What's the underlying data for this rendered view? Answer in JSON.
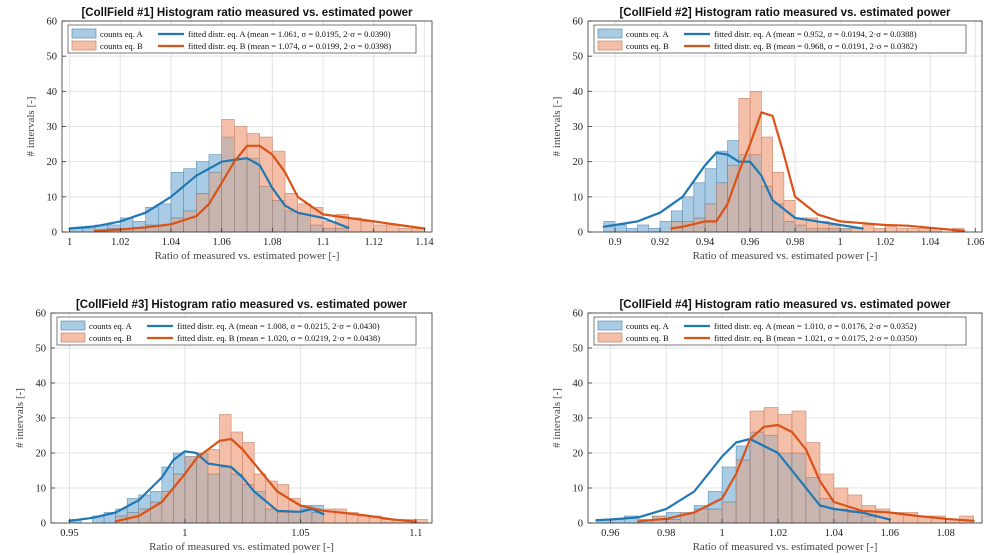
{
  "colors": {
    "a_fill": "#a9cbe3",
    "a_edge": "#5b8fb5",
    "a_line": "#1f77b4",
    "b_fill": "#f4bfa8",
    "b_edge": "#c98466",
    "b_line": "#d95319",
    "grid": "#e3e3e3",
    "overlap": "#c8b5b0"
  },
  "chart_data": [
    {
      "type": "bar",
      "title": "[CollField #1] Histogram ratio measured vs. estimated power",
      "xlabel": "Ratio of measured vs. estimated power [-]",
      "ylabel": "# intervals [-]",
      "xlim": [
        0.997,
        1.143
      ],
      "ylim": [
        0,
        60
      ],
      "xticks": [
        1,
        1.02,
        1.04,
        1.06,
        1.08,
        1.1,
        1.12,
        1.14
      ],
      "xtick_labels": [
        "1",
        "1.02",
        "1.04",
        "1.06",
        "1.08",
        "1.1",
        "1.12",
        "1.14"
      ],
      "yticks": [
        0,
        10,
        20,
        30,
        40,
        50,
        60
      ],
      "grid": true,
      "legend_position": "top",
      "bin_start": 1.0,
      "bin_width": 0.005,
      "series": [
        {
          "name": "counts eq. A",
          "kind": "histogram",
          "values": [
            1,
            1,
            2,
            2,
            4,
            3,
            7,
            8,
            17,
            18,
            20,
            22,
            27,
            21,
            21,
            13,
            9,
            6,
            5,
            2,
            1,
            1,
            0,
            0,
            0,
            0,
            0,
            0
          ]
        },
        {
          "name": "counts eq. B",
          "kind": "histogram",
          "values": [
            0,
            0,
            0,
            1,
            1,
            1,
            2,
            2,
            4,
            6,
            11,
            17,
            32,
            30,
            28,
            27,
            23,
            11,
            8,
            7,
            3,
            5,
            4,
            3,
            2,
            2,
            1,
            1
          ]
        },
        {
          "name": "fitted distr. eq. A (mean = 1.061, σ = 0.0195, 2·σ = 0.0390)",
          "kind": "curve",
          "x": [
            1.0,
            1.01,
            1.02,
            1.03,
            1.04,
            1.05,
            1.06,
            1.065,
            1.07,
            1.075,
            1.08,
            1.085,
            1.09,
            1.1,
            1.11
          ],
          "y": [
            1,
            1.6,
            3,
            5.5,
            10,
            16,
            20,
            20.5,
            21,
            19,
            12.5,
            7.5,
            5.5,
            4,
            1.2
          ]
        },
        {
          "name": "fitted distr. eq. B (mean = 1.074, σ = 0.0199, 2·σ = 0.0398)",
          "kind": "curve",
          "x": [
            1.01,
            1.02,
            1.03,
            1.04,
            1.05,
            1.055,
            1.06,
            1.065,
            1.07,
            1.075,
            1.08,
            1.085,
            1.09,
            1.1,
            1.11,
            1.12,
            1.13,
            1.14
          ],
          "y": [
            0.3,
            0.7,
            1.3,
            2.2,
            4.5,
            8,
            14,
            20,
            24.5,
            24.5,
            22,
            17,
            10,
            5,
            4,
            3,
            2,
            1
          ]
        }
      ]
    },
    {
      "type": "bar",
      "title": "[CollField #2] Histogram ratio measured vs. estimated power",
      "xlabel": "Ratio of measured vs. estimated power [-]",
      "ylabel": "# intervals [-]",
      "xlim": [
        0.888,
        1.063
      ],
      "ylim": [
        0,
        60
      ],
      "xticks": [
        0.9,
        0.92,
        0.94,
        0.96,
        0.98,
        1,
        1.02,
        1.04,
        1.06
      ],
      "xtick_labels": [
        "0.9",
        "0.92",
        "0.94",
        "0.96",
        "0.98",
        "1",
        "1.02",
        "1.04",
        "1.06"
      ],
      "yticks": [
        0,
        10,
        20,
        30,
        40,
        50,
        60
      ],
      "grid": true,
      "legend_position": "top",
      "bin_start": 0.895,
      "bin_width": 0.005,
      "series": [
        {
          "name": "counts eq. A",
          "kind": "histogram",
          "values": [
            3,
            2,
            1,
            2,
            1,
            3,
            6,
            10,
            14,
            18,
            23,
            26,
            22,
            22,
            13,
            8,
            3,
            2,
            1,
            1,
            1,
            1,
            0,
            0,
            0,
            0,
            0,
            0,
            0,
            0,
            0,
            0
          ]
        },
        {
          "name": "counts eq. B",
          "kind": "histogram",
          "values": [
            0,
            0,
            0,
            0,
            0,
            0,
            3,
            3,
            4,
            8,
            14,
            19,
            38,
            40,
            27,
            17,
            9,
            4,
            4,
            3,
            2,
            1,
            1,
            2,
            1,
            2,
            1,
            1,
            1,
            1,
            0,
            1
          ]
        },
        {
          "name": "fitted distr. eq. A (mean = 0.952, σ = 0.0194, 2·σ = 0.0388)",
          "kind": "curve",
          "x": [
            0.895,
            0.9,
            0.91,
            0.92,
            0.93,
            0.94,
            0.945,
            0.95,
            0.955,
            0.96,
            0.965,
            0.97,
            0.98,
            0.99,
            1.0,
            1.01
          ],
          "y": [
            1.5,
            2,
            3,
            5.5,
            10,
            19,
            22.5,
            22,
            20,
            20,
            16,
            9,
            4,
            3,
            2,
            1
          ]
        },
        {
          "name": "fitted distr. eq. B (mean = 0.968, σ = 0.0191, 2·σ = 0.0382)",
          "kind": "curve",
          "x": [
            0.925,
            0.93,
            0.94,
            0.945,
            0.95,
            0.955,
            0.96,
            0.965,
            0.97,
            0.975,
            0.98,
            0.99,
            1.0,
            1.01,
            1.02,
            1.03,
            1.04,
            1.05,
            1.055
          ],
          "y": [
            1,
            1.5,
            3,
            3,
            8,
            17,
            25,
            34,
            33,
            22,
            10,
            5,
            3,
            2.5,
            2,
            1.8,
            1.2,
            0.6,
            0.3
          ]
        }
      ]
    },
    {
      "type": "bar",
      "title": "[CollField #3] Histogram ratio measured vs. estimated power",
      "xlabel": "Ratio of measured vs. estimated power [-]",
      "ylabel": "# intervals [-]",
      "xlim": [
        0.942,
        1.107
      ],
      "ylim": [
        0,
        60
      ],
      "xticks": [
        0.95,
        1,
        1.05,
        1.1
      ],
      "xtick_labels": [
        "0.95",
        "1",
        "1.05",
        "1.1"
      ],
      "yticks": [
        0,
        10,
        20,
        30,
        40,
        50,
        60
      ],
      "grid": true,
      "legend_position": "top",
      "bin_start": 0.95,
      "bin_width": 0.005,
      "series": [
        {
          "name": "counts eq. A",
          "kind": "histogram",
          "values": [
            1,
            0,
            2,
            3,
            4,
            7,
            8,
            9,
            16,
            20,
            19,
            20,
            14,
            16,
            14,
            11,
            9,
            4,
            3,
            3,
            5,
            5,
            0,
            0,
            0,
            0,
            0,
            0,
            0,
            0,
            0
          ]
        },
        {
          "name": "counts eq. B",
          "kind": "histogram",
          "values": [
            0,
            0,
            0,
            0,
            2,
            3,
            4,
            6,
            9,
            14,
            19,
            20,
            21,
            31,
            26,
            23,
            14,
            12,
            11,
            7,
            4,
            3,
            4,
            4,
            3,
            2,
            2,
            1,
            1,
            1,
            1
          ]
        },
        {
          "name": "fitted distr. eq. A (mean = 1.008, σ = 0.0215, 2·σ = 0.0430)",
          "kind": "curve",
          "x": [
            0.95,
            0.96,
            0.97,
            0.98,
            0.99,
            0.995,
            1.0,
            1.005,
            1.01,
            1.015,
            1.02,
            1.025,
            1.03,
            1.04,
            1.05,
            1.055,
            1.06
          ],
          "y": [
            0.6,
            1.5,
            3,
            6.5,
            13,
            18,
            20.5,
            20,
            17,
            16.5,
            16,
            13,
            9,
            3.5,
            3.2,
            4,
            2.5
          ]
        },
        {
          "name": "fitted distr. eq. B (mean = 1.020, σ = 0.0219, 2·σ = 0.0438)",
          "kind": "curve",
          "x": [
            0.97,
            0.98,
            0.99,
            1.0,
            1.005,
            1.01,
            1.015,
            1.02,
            1.025,
            1.03,
            1.04,
            1.05,
            1.06,
            1.07,
            1.08,
            1.09,
            1.1
          ],
          "y": [
            0.5,
            2,
            6,
            14,
            18.5,
            21,
            23.5,
            24,
            21,
            17,
            9,
            5,
            3.5,
            2.8,
            2,
            1,
            0.4
          ]
        }
      ]
    },
    {
      "type": "bar",
      "title": "[CollField #4] Histogram ratio measured vs. estimated power",
      "xlabel": "Ratio of measured vs. estimated power [-]",
      "ylabel": "# intervals [-]",
      "xlim": [
        0.952,
        1.093
      ],
      "ylim": [
        0,
        60
      ],
      "xticks": [
        0.96,
        0.98,
        1,
        1.02,
        1.04,
        1.06,
        1.08
      ],
      "xtick_labels": [
        "0.96",
        "0.98",
        "1",
        "1.02",
        "1.04",
        "1.06",
        "1.08"
      ],
      "yticks": [
        0,
        10,
        20,
        30,
        40,
        50,
        60
      ],
      "grid": true,
      "legend_position": "top",
      "bin_start": 0.955,
      "bin_width": 0.005,
      "series": [
        {
          "name": "counts eq. A",
          "kind": "histogram",
          "values": [
            1,
            1,
            2,
            1,
            2,
            3,
            3,
            5,
            9,
            16,
            22,
            26,
            25,
            20,
            20,
            13,
            7,
            4,
            3,
            2,
            0,
            0,
            0,
            0,
            0,
            0,
            0
          ]
        },
        {
          "name": "counts eq. B",
          "kind": "histogram",
          "values": [
            0,
            0,
            0,
            0,
            2,
            1,
            3,
            4,
            4,
            6,
            18,
            32,
            33,
            31,
            32,
            23,
            14,
            10,
            8,
            5,
            4,
            3,
            3,
            2,
            2,
            1,
            2
          ]
        },
        {
          "name": "fitted distr. eq. A (mean = 1.010, σ = 0.0176, 2·σ = 0.0352)",
          "kind": "curve",
          "x": [
            0.955,
            0.96,
            0.97,
            0.98,
            0.99,
            1.0,
            1.005,
            1.01,
            1.015,
            1.02,
            1.03,
            1.035,
            1.04,
            1.05,
            1.06
          ],
          "y": [
            0.8,
            1,
            1.6,
            4,
            9,
            19,
            23,
            24,
            22,
            20,
            10,
            5,
            4,
            3,
            1
          ]
        },
        {
          "name": "fitted distr. eq. B (mean = 1.021, σ = 0.0175, 2·σ = 0.0350)",
          "kind": "curve",
          "x": [
            0.97,
            0.98,
            0.99,
            1.0,
            1.005,
            1.01,
            1.015,
            1.02,
            1.025,
            1.03,
            1.035,
            1.04,
            1.05,
            1.06,
            1.07,
            1.08,
            1.09
          ],
          "y": [
            0.5,
            1.2,
            3,
            7,
            14,
            24,
            27.5,
            28,
            26,
            21,
            12,
            6,
            3.5,
            3,
            2,
            1.2,
            0.6
          ]
        }
      ]
    }
  ]
}
